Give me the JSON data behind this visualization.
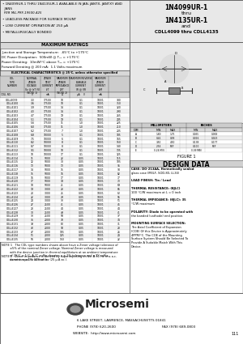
{
  "bg_color": "#ffffff",
  "table_rows": [
    [
      "CDLL4099",
      "3.3",
      "17500",
      "10",
      "0.1",
      "100/1",
      "380"
    ],
    [
      "CDLL4100",
      "3.6",
      "17500",
      "10",
      "0.1",
      "100/1",
      "350"
    ],
    [
      "CDLL4101",
      "3.9",
      "17500",
      "14",
      "0.1",
      "100/1",
      "320"
    ],
    [
      "CDLL4102",
      "4.3",
      "17500",
      "14",
      "0.1",
      "100/1",
      "290"
    ],
    [
      "CDLL4103",
      "4.7",
      "17500",
      "19",
      "0.1",
      "100/1",
      "265"
    ],
    [
      "CDLL4104",
      "5.1",
      "17500",
      "19",
      "0.1",
      "100/1",
      "245"
    ],
    [
      "CDLL4105",
      "5.6",
      "17500",
      "11",
      "1.0",
      "100/1",
      "225"
    ],
    [
      "CDLL4106",
      "6.0",
      "17500",
      "11",
      "1.0",
      "100/1",
      "210"
    ],
    [
      "CDLL4107",
      "6.2",
      "17500",
      "7",
      "1.0",
      "100/1",
      "205"
    ],
    [
      "CDLL4108",
      "6.8",
      "10000",
      "5",
      "0.1",
      "100/1",
      "185"
    ],
    [
      "CDLL4109",
      "7.5",
      "10000",
      "6",
      "0.1",
      "100/1",
      "165"
    ],
    [
      "CDLL4110",
      "8.2",
      "10000",
      "8",
      "0.1",
      "100/1",
      "150"
    ],
    [
      "CDLL4111",
      "8.7",
      "10000",
      "8",
      "0.1",
      "100/1",
      "140"
    ],
    [
      "CDLL4112",
      "9.1",
      "10000",
      "10",
      "0.1",
      "100/1",
      "135"
    ],
    [
      "CDLL4113",
      "10",
      "10000",
      "17",
      "0.1",
      "100/1",
      "125"
    ],
    [
      "CDLL4114",
      "11",
      "5000",
      "22",
      "0.05",
      "100/1",
      "115"
    ],
    [
      "CDLL4115",
      "12",
      "5000",
      "30",
      "0.05",
      "100/1",
      "105"
    ],
    [
      "CDLL4116",
      "13",
      "5000",
      "13",
      "0.05",
      "100/1",
      "95"
    ],
    [
      "CDLL4117",
      "14",
      "5000",
      "15",
      "0.05",
      "100/1",
      "90"
    ],
    [
      "CDLL4118",
      "15",
      "5000",
      "16",
      "0.05",
      "100/1",
      "82"
    ],
    [
      "CDLL4119",
      "16",
      "5000",
      "17",
      "0.05",
      "100/1",
      "77"
    ],
    [
      "CDLL4120",
      "17",
      "5000",
      "19",
      "0.05",
      "100/1",
      "73"
    ],
    [
      "CDLL4121",
      "18",
      "5000",
      "21",
      "0.05",
      "100/1",
      "69"
    ],
    [
      "CDLL4122",
      "19",
      "3000",
      "23",
      "0.05",
      "100/1",
      "65"
    ],
    [
      "CDLL4123",
      "20",
      "3000",
      "25",
      "0.05",
      "100/1",
      "62"
    ],
    [
      "CDLL4124",
      "22",
      "3000",
      "29",
      "0.05",
      "100/1",
      "55"
    ],
    [
      "CDLL4125",
      "24",
      "3000",
      "33",
      "0.05",
      "100/1",
      "51"
    ],
    [
      "CDLL4126",
      "27",
      "2500",
      "41",
      "0.05",
      "100/1",
      "45"
    ],
    [
      "CDLL4127",
      "28",
      "2500",
      "44",
      "0.05",
      "100/1",
      "44"
    ],
    [
      "CDLL4128",
      "30",
      "2500",
      "49",
      "0.05",
      "100/1",
      "41"
    ],
    [
      "CDLL4129",
      "33",
      "2500",
      "58",
      "0.05",
      "100/1",
      "37"
    ],
    [
      "CDLL4130",
      "36",
      "2000",
      "70",
      "0.05",
      "100/1",
      "34"
    ],
    [
      "CDLL4131",
      "39",
      "2000",
      "80",
      "0.05",
      "100/1",
      "31"
    ],
    [
      "CDLL4132",
      "43",
      "2000",
      "93",
      "0.05",
      "100/1",
      "28"
    ],
    [
      "CDLL4133",
      "47",
      "2000",
      "105",
      "0.05",
      "100/1",
      "26"
    ],
    [
      "CDLL4134",
      "51",
      "2000",
      "125",
      "0.05",
      "100/1",
      "24"
    ],
    [
      "CDLL4135",
      "56",
      "2000",
      "150",
      "0.05",
      "100/1",
      "22"
    ]
  ],
  "dim_rows": [
    [
      "A",
      "1.80",
      "1.75",
      "0.055",
      "0.069"
    ],
    [
      "B",
      "0.41",
      "0.58",
      "0.016",
      "0.023"
    ],
    [
      "C",
      "3.50",
      "4.50",
      "0.138",
      "0.177"
    ],
    [
      "D",
      "2.54",
      "REF",
      "0.100",
      "REF"
    ],
    [
      "E",
      "0.24 MIN",
      "",
      "0.09 MIN",
      ""
    ]
  ]
}
